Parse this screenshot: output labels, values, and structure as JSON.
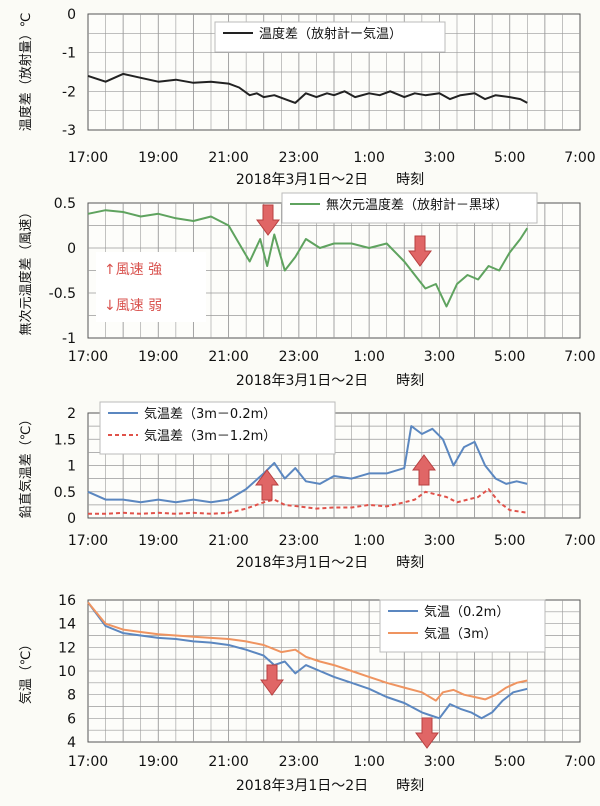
{
  "chart_data": [
    {
      "type": "line",
      "ylabel": "温度差（放射量）℃",
      "ylim": [
        -3,
        0
      ],
      "yticks": [
        0,
        -1,
        -2,
        -3
      ],
      "xtick_labels": [
        "17:00",
        "19:00",
        "21:00",
        "23:00",
        "1:00",
        "3:00",
        "5:00",
        "7:00"
      ],
      "xlabel": "2018年3月1日～2日　　時刻",
      "legend_position": "top-right",
      "series": [
        {
          "name": "温度差（放射計ー気温）",
          "color": "#222222",
          "x": [
            17.0,
            17.5,
            18.0,
            18.5,
            19.0,
            19.5,
            20.0,
            20.5,
            21.0,
            21.3,
            21.6,
            21.8,
            22.0,
            22.3,
            22.6,
            22.9,
            23.2,
            23.5,
            23.8,
            24.0,
            24.3,
            24.6,
            25.0,
            25.3,
            25.6,
            26.0,
            26.3,
            26.6,
            27.0,
            27.3,
            27.6,
            28.0,
            28.3,
            28.6,
            29.0,
            29.3,
            29.5
          ],
          "y": [
            -1.6,
            -1.75,
            -1.55,
            -1.65,
            -1.75,
            -1.7,
            -1.78,
            -1.75,
            -1.8,
            -1.9,
            -2.1,
            -2.05,
            -2.15,
            -2.1,
            -2.2,
            -2.3,
            -2.05,
            -2.15,
            -2.05,
            -2.1,
            -2.0,
            -2.15,
            -2.05,
            -2.1,
            -2.0,
            -2.15,
            -2.05,
            -2.1,
            -2.05,
            -2.2,
            -2.1,
            -2.05,
            -2.2,
            -2.1,
            -2.15,
            -2.2,
            -2.3
          ]
        }
      ]
    },
    {
      "type": "line",
      "ylabel": "無次元温度差（風速）",
      "ylim": [
        -1,
        0.5
      ],
      "yticks": [
        0.5,
        0,
        -0.5,
        -1
      ],
      "xtick_labels": [
        "17:00",
        "19:00",
        "21:00",
        "23:00",
        "1:00",
        "3:00",
        "5:00",
        "7:00"
      ],
      "xlabel": "2018年3月1日～2日　　時刻",
      "legend_position": "top-right",
      "annotations": [
        "↑風速 強",
        "↓風速 弱"
      ],
      "series": [
        {
          "name": "無次元温度差（放射計－黒球）",
          "color": "#5fa35f",
          "x": [
            17.0,
            17.5,
            18.0,
            18.5,
            19.0,
            19.5,
            20.0,
            20.5,
            21.0,
            21.3,
            21.6,
            21.9,
            22.1,
            22.3,
            22.6,
            22.9,
            23.2,
            23.6,
            24.0,
            24.5,
            25.0,
            25.5,
            26.0,
            26.3,
            26.6,
            26.9,
            27.2,
            27.5,
            27.8,
            28.1,
            28.4,
            28.7,
            29.0,
            29.3,
            29.5
          ],
          "y": [
            0.38,
            0.42,
            0.4,
            0.35,
            0.38,
            0.33,
            0.3,
            0.35,
            0.25,
            0.05,
            -0.15,
            0.1,
            -0.2,
            0.15,
            -0.25,
            -0.1,
            0.1,
            0.0,
            0.05,
            0.05,
            0.0,
            0.05,
            -0.15,
            -0.3,
            -0.45,
            -0.4,
            -0.65,
            -0.4,
            -0.3,
            -0.35,
            -0.2,
            -0.25,
            -0.05,
            0.1,
            0.22
          ]
        }
      ]
    },
    {
      "type": "line",
      "ylabel": "鉛直気温差（℃）",
      "ylim": [
        0,
        2
      ],
      "yticks": [
        2,
        1.5,
        1,
        0.5,
        0
      ],
      "xtick_labels": [
        "17:00",
        "19:00",
        "21:00",
        "23:00",
        "1:00",
        "3:00",
        "5:00",
        "7:00"
      ],
      "xlabel": "2018年3月1日～2日　　時刻",
      "legend_position": "top-left",
      "series": [
        {
          "name": "気温差（3m－0.2m）",
          "color": "#5b87c0",
          "x": [
            17.0,
            17.5,
            18.0,
            18.5,
            19.0,
            19.5,
            20.0,
            20.5,
            21.0,
            21.5,
            22.0,
            22.3,
            22.6,
            22.9,
            23.2,
            23.6,
            24.0,
            24.5,
            25.0,
            25.5,
            26.0,
            26.2,
            26.5,
            26.8,
            27.1,
            27.4,
            27.7,
            28.0,
            28.3,
            28.6,
            28.9,
            29.2,
            29.5
          ],
          "y": [
            0.5,
            0.35,
            0.35,
            0.3,
            0.35,
            0.3,
            0.35,
            0.3,
            0.35,
            0.55,
            0.85,
            1.05,
            0.75,
            0.95,
            0.7,
            0.65,
            0.8,
            0.75,
            0.85,
            0.85,
            0.95,
            1.75,
            1.6,
            1.7,
            1.5,
            1.0,
            1.35,
            1.45,
            1.0,
            0.75,
            0.65,
            0.7,
            0.65
          ]
        },
        {
          "name": "気温差（3m－1.2m）",
          "color": "#e0524a",
          "x": [
            17.0,
            17.5,
            18.0,
            18.5,
            19.0,
            19.5,
            20.0,
            20.5,
            21.0,
            21.5,
            22.0,
            22.3,
            22.6,
            23.0,
            23.5,
            24.0,
            24.5,
            25.0,
            25.5,
            26.0,
            26.3,
            26.6,
            26.9,
            27.2,
            27.5,
            27.8,
            28.1,
            28.4,
            28.7,
            29.0,
            29.3,
            29.5
          ],
          "y": [
            0.08,
            0.08,
            0.1,
            0.08,
            0.1,
            0.08,
            0.1,
            0.08,
            0.1,
            0.18,
            0.3,
            0.35,
            0.25,
            0.22,
            0.18,
            0.2,
            0.2,
            0.25,
            0.22,
            0.3,
            0.35,
            0.5,
            0.45,
            0.4,
            0.3,
            0.35,
            0.4,
            0.55,
            0.3,
            0.15,
            0.12,
            0.1
          ]
        }
      ]
    },
    {
      "type": "line",
      "ylabel": "気温（℃）",
      "ylim": [
        4,
        16
      ],
      "yticks": [
        16,
        14,
        12,
        10,
        8,
        6,
        4
      ],
      "xtick_labels": [
        "17:00",
        "19:00",
        "21:00",
        "23:00",
        "1:00",
        "3:00",
        "5:00",
        "7:00"
      ],
      "xlabel": "2018年3月1日～2日　　時刻",
      "legend_position": "top-right",
      "series": [
        {
          "name": "気温（0.2m）",
          "color": "#5b87c0",
          "x": [
            17.0,
            17.5,
            18.0,
            18.5,
            19.0,
            19.5,
            20.0,
            20.5,
            21.0,
            21.5,
            22.0,
            22.3,
            22.6,
            22.9,
            23.2,
            23.6,
            24.0,
            24.5,
            25.0,
            25.5,
            26.0,
            26.5,
            26.8,
            27.0,
            27.3,
            27.6,
            27.9,
            28.2,
            28.5,
            28.8,
            29.1,
            29.5
          ],
          "y": [
            15.8,
            13.8,
            13.2,
            13.0,
            12.8,
            12.7,
            12.5,
            12.4,
            12.2,
            11.8,
            11.3,
            10.5,
            10.8,
            9.8,
            10.5,
            10.0,
            9.5,
            9.0,
            8.5,
            7.8,
            7.3,
            6.5,
            6.2,
            6.0,
            7.2,
            6.8,
            6.5,
            6.0,
            6.5,
            7.5,
            8.2,
            8.5
          ]
        },
        {
          "name": "気温（3m）",
          "color": "#ef9460",
          "x": [
            17.0,
            17.5,
            18.0,
            18.5,
            19.0,
            19.5,
            20.0,
            20.5,
            21.0,
            21.5,
            22.0,
            22.5,
            22.9,
            23.2,
            23.6,
            24.0,
            24.5,
            25.0,
            25.5,
            26.0,
            26.5,
            26.9,
            27.1,
            27.4,
            27.7,
            28.0,
            28.3,
            28.6,
            28.9,
            29.2,
            29.5
          ],
          "y": [
            15.8,
            14.0,
            13.5,
            13.3,
            13.1,
            13.0,
            12.9,
            12.8,
            12.7,
            12.5,
            12.2,
            11.6,
            11.8,
            11.2,
            10.8,
            10.5,
            10.0,
            9.5,
            9.0,
            8.6,
            8.2,
            7.5,
            8.2,
            8.4,
            8.0,
            7.8,
            7.6,
            8.0,
            8.6,
            9.0,
            9.2
          ]
        }
      ]
    }
  ]
}
